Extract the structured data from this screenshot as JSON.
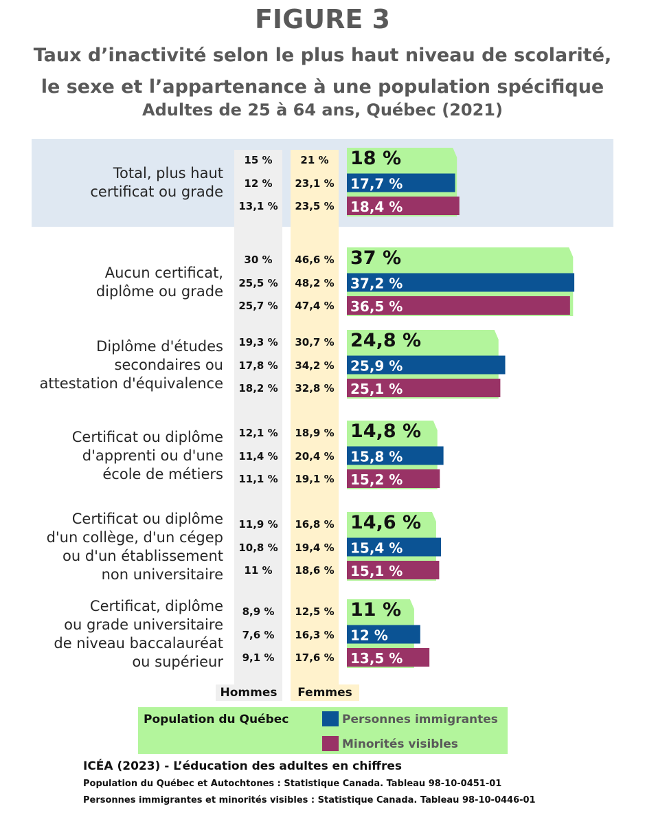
{
  "title": "FIGURE 3",
  "subtitle_line1": "Taux d’inactivité selon le plus haut niveau de scolarité,",
  "subtitle_line2": "le sexe et l’appartenance à une population spécifique",
  "subtitle2": "Adultes de 25 à 64 ans, Québec (2021)",
  "column_headers": {
    "men": "Hommes",
    "women": "Femmes"
  },
  "legend": {
    "population": "Population du Québec",
    "immigrants": "Personnes immigrantes",
    "minorities": "Minorités visibles"
  },
  "colors": {
    "population": "#b3f59c",
    "immigrants": "#0b5394",
    "minorities": "#993366",
    "total_band": "#dfe8f2",
    "men_col": "#efefef",
    "women_col": "#fff2cc"
  },
  "chart_data": {
    "type": "bar",
    "orientation": "horizontal",
    "unit": "%",
    "series_names": [
      "Population du Québec",
      "Personnes immigrantes",
      "Minorités visibles"
    ],
    "categories": [
      {
        "label_lines": [
          "Total, plus haut",
          "certificat ou grade"
        ],
        "men": [
          "15 %",
          "12 %",
          "13,1 %"
        ],
        "women": [
          "21 %",
          "23,1 %",
          "23,5 %"
        ],
        "total": [
          18,
          17.7,
          18.4
        ],
        "total_labels": [
          "18 %",
          "17,7 %",
          "18,4 %"
        ]
      },
      {
        "label_lines": [
          "Aucun certificat,",
          "diplôme ou grade"
        ],
        "men": [
          "30 %",
          "25,5 %",
          "25,7 %"
        ],
        "women": [
          "46,6 %",
          "48,2 %",
          "47,4 %"
        ],
        "total": [
          37,
          37.2,
          36.5
        ],
        "total_labels": [
          "37 %",
          "37,2 %",
          "36,5 %"
        ]
      },
      {
        "label_lines": [
          "Diplôme d'études",
          "secondaires ou",
          "attestation d'équivalence"
        ],
        "men": [
          "19,3 %",
          "17,8 %",
          "18,2 %"
        ],
        "women": [
          "30,7 %",
          "34,2 %",
          "32,8 %"
        ],
        "total": [
          24.8,
          25.9,
          25.1
        ],
        "total_labels": [
          "24,8 %",
          "25,9 %",
          "25,1 %"
        ]
      },
      {
        "label_lines": [
          "Certificat ou diplôme",
          "d'apprenti ou d'une",
          "école de métiers"
        ],
        "men": [
          "12,1 %",
          "11,4 %",
          "11,1 %"
        ],
        "women": [
          "18,9 %",
          "20,4 %",
          "19,1 %"
        ],
        "total": [
          14.8,
          15.8,
          15.2
        ],
        "total_labels": [
          "14,8 %",
          "15,8 %",
          "15,2 %"
        ]
      },
      {
        "label_lines": [
          "Certificat ou diplôme",
          "d'un collège, d'un cégep",
          "ou d'un établissement",
          "non universitaire"
        ],
        "men": [
          "11,9 %",
          "10,8 %",
          "11 %"
        ],
        "women": [
          "16,8 %",
          "19,4 %",
          "18,6 %"
        ],
        "total": [
          14.6,
          15.4,
          15.1
        ],
        "total_labels": [
          "14,6 %",
          "15,4 %",
          "15,1 %"
        ]
      },
      {
        "label_lines": [
          "Certificat, diplôme",
          "ou grade universitaire",
          "de niveau baccalauréat",
          "ou supérieur"
        ],
        "men": [
          "8,9 %",
          "7,6 %",
          "9,1 %"
        ],
        "women": [
          "12,5 %",
          "16,3 %",
          "17,6 %"
        ],
        "total": [
          11,
          12,
          13.5
        ],
        "total_labels": [
          "11 %",
          "12 %",
          "13,5 %"
        ]
      }
    ]
  },
  "source": {
    "main": "ICÉA (2023) - L’éducation des adultes en chiffres",
    "line1": "Population du Québec et Autochtones : Statistique Canada. Tableau 98-10-0451-01",
    "line2": "Personnes immigrantes et minorités visibles : Statistique Canada. Tableau 98-10-0446-01"
  }
}
